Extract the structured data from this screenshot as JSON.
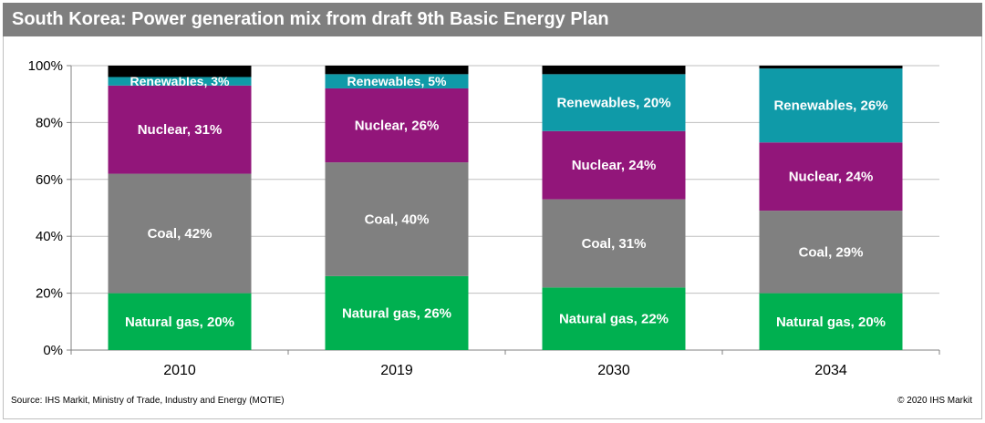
{
  "title": "South Korea: Power generation mix from draft 9th Basic Energy Plan",
  "source": "Source: IHS Markit, Ministry of Trade, Industry and Energy (MOTIE)",
  "copyright": "© 2020 IHS Markit",
  "chart_data": {
    "type": "bar",
    "stacked": true,
    "categories": [
      "2010",
      "2019",
      "2030",
      "2034"
    ],
    "ylim": [
      0,
      100
    ],
    "yticks": [
      "0%",
      "20%",
      "40%",
      "60%",
      "80%",
      "100%"
    ],
    "grid": true,
    "series": [
      {
        "name": "Natural gas",
        "color": "#00b050",
        "values": [
          20,
          26,
          22,
          20
        ],
        "labels": [
          "Natural gas, 20%",
          "Natural gas, 26%",
          "Natural gas, 22%",
          "Natural gas, 20%"
        ]
      },
      {
        "name": "Coal",
        "color": "#808080",
        "values": [
          42,
          40,
          31,
          29
        ],
        "labels": [
          "Coal, 42%",
          "Coal, 40%",
          "Coal, 31%",
          "Coal, 29%"
        ]
      },
      {
        "name": "Nuclear",
        "color": "#92167a",
        "values": [
          31,
          26,
          24,
          24
        ],
        "labels": [
          "Nuclear, 31%",
          "Nuclear, 26%",
          "Nuclear, 24%",
          "Nuclear, 24%"
        ]
      },
      {
        "name": "Renewables",
        "color": "#0f9aa8",
        "values": [
          3,
          5,
          20,
          26
        ],
        "labels": [
          "Renewables, 3%",
          "Renewables, 5%",
          "Renewables, 20%",
          "Renewables, 26%"
        ]
      },
      {
        "name": "",
        "color": "#000000",
        "values": [
          4,
          3,
          3,
          1
        ],
        "labels": [
          "",
          "",
          "",
          ""
        ]
      }
    ]
  }
}
